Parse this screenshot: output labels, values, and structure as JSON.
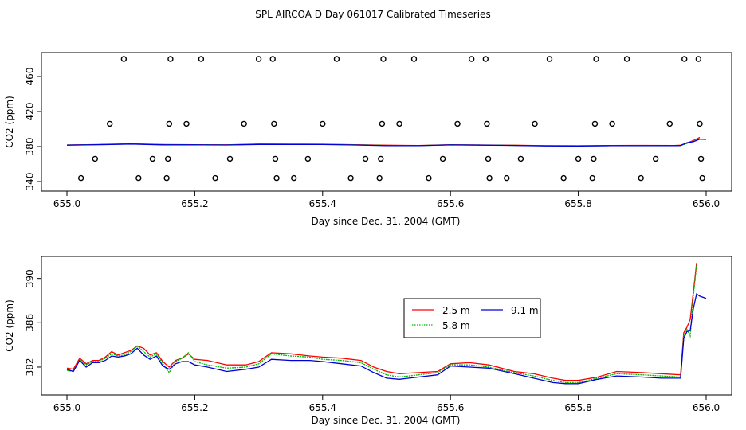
{
  "page": {
    "title": "SPL AIRCOA D  Day 061017  Calibrated Timeseries"
  },
  "chart_data": [
    {
      "type": "scatter",
      "id": "top",
      "xlabel": "Day since Dec. 31, 2004 (GMT)",
      "ylabel": "CO2 (ppm)",
      "xlim": [
        655.0,
        656.0
      ],
      "ylim": [
        340,
        480
      ],
      "xticks": [
        655.0,
        655.2,
        655.4,
        655.6,
        655.8,
        656.0
      ],
      "xtick_labels": [
        "655.0",
        "655.2",
        "655.4",
        "655.6",
        "655.8",
        "656.0"
      ],
      "yticks": [
        340,
        380,
        420,
        460
      ],
      "ytick_labels": [
        "340",
        "380",
        "420",
        "460"
      ],
      "points": [
        {
          "x": 655.022,
          "y": 344
        },
        {
          "x": 655.044,
          "y": 366
        },
        {
          "x": 655.067,
          "y": 406
        },
        {
          "x": 655.089,
          "y": 480
        },
        {
          "x": 655.112,
          "y": 344
        },
        {
          "x": 655.134,
          "y": 366
        },
        {
          "x": 655.156,
          "y": 344
        },
        {
          "x": 655.158,
          "y": 366
        },
        {
          "x": 655.16,
          "y": 406
        },
        {
          "x": 655.162,
          "y": 480
        },
        {
          "x": 655.187,
          "y": 406
        },
        {
          "x": 655.21,
          "y": 480
        },
        {
          "x": 655.232,
          "y": 344
        },
        {
          "x": 655.255,
          "y": 366
        },
        {
          "x": 655.277,
          "y": 406
        },
        {
          "x": 655.3,
          "y": 480
        },
        {
          "x": 655.322,
          "y": 480
        },
        {
          "x": 655.324,
          "y": 406
        },
        {
          "x": 655.326,
          "y": 366
        },
        {
          "x": 655.328,
          "y": 344
        },
        {
          "x": 655.355,
          "y": 344
        },
        {
          "x": 655.377,
          "y": 366
        },
        {
          "x": 655.4,
          "y": 406
        },
        {
          "x": 655.422,
          "y": 480
        },
        {
          "x": 655.444,
          "y": 344
        },
        {
          "x": 655.467,
          "y": 366
        },
        {
          "x": 655.489,
          "y": 344
        },
        {
          "x": 655.491,
          "y": 366
        },
        {
          "x": 655.493,
          "y": 406
        },
        {
          "x": 655.495,
          "y": 480
        },
        {
          "x": 655.52,
          "y": 406
        },
        {
          "x": 655.543,
          "y": 480
        },
        {
          "x": 655.566,
          "y": 344
        },
        {
          "x": 655.588,
          "y": 366
        },
        {
          "x": 655.611,
          "y": 406
        },
        {
          "x": 655.633,
          "y": 480
        },
        {
          "x": 655.655,
          "y": 480
        },
        {
          "x": 655.657,
          "y": 406
        },
        {
          "x": 655.659,
          "y": 366
        },
        {
          "x": 655.661,
          "y": 344
        },
        {
          "x": 655.688,
          "y": 344
        },
        {
          "x": 655.71,
          "y": 366
        },
        {
          "x": 655.732,
          "y": 406
        },
        {
          "x": 655.755,
          "y": 480
        },
        {
          "x": 655.777,
          "y": 344
        },
        {
          "x": 655.8,
          "y": 366
        },
        {
          "x": 655.822,
          "y": 344
        },
        {
          "x": 655.824,
          "y": 366
        },
        {
          "x": 655.826,
          "y": 406
        },
        {
          "x": 655.828,
          "y": 480
        },
        {
          "x": 655.853,
          "y": 406
        },
        {
          "x": 655.876,
          "y": 480
        },
        {
          "x": 655.898,
          "y": 344
        },
        {
          "x": 655.921,
          "y": 366
        },
        {
          "x": 655.943,
          "y": 406
        },
        {
          "x": 655.966,
          "y": 480
        },
        {
          "x": 655.988,
          "y": 480
        },
        {
          "x": 655.99,
          "y": 406
        },
        {
          "x": 655.992,
          "y": 366
        },
        {
          "x": 655.994,
          "y": 344
        }
      ],
      "series": [
        {
          "name": "2.5 m",
          "color": "#ff0000",
          "x": [
            655.0,
            655.05,
            655.1,
            655.15,
            655.2,
            655.25,
            655.3,
            655.35,
            655.4,
            655.45,
            655.5,
            655.55,
            655.6,
            655.65,
            655.7,
            655.75,
            655.8,
            655.85,
            655.9,
            655.95,
            655.96,
            655.97,
            655.98,
            655.99
          ],
          "y": [
            381.8,
            382.4,
            383.2,
            382.4,
            382.2,
            382.0,
            382.9,
            382.8,
            382.7,
            382.2,
            381.5,
            381.3,
            382.1,
            381.8,
            381.5,
            381.0,
            380.9,
            381.3,
            381.4,
            381.2,
            381.5,
            384.0,
            387.0,
            390.5
          ]
        },
        {
          "name": "5.8 m",
          "color": "#00bb00",
          "x": [
            655.0,
            655.05,
            655.1,
            655.15,
            655.2,
            655.25,
            655.3,
            655.35,
            655.4,
            655.45,
            655.5,
            655.55,
            655.6,
            655.65,
            655.7,
            655.75,
            655.8,
            655.85,
            655.9,
            655.95,
            655.96,
            655.97,
            655.98,
            655.99
          ],
          "y": [
            381.7,
            382.3,
            383.0,
            382.2,
            382.1,
            381.9,
            382.7,
            382.6,
            382.6,
            382.0,
            381.3,
            381.1,
            382.0,
            381.7,
            381.4,
            380.9,
            380.8,
            381.1,
            381.2,
            381.1,
            381.3,
            383.5,
            386.5,
            389.5
          ]
        },
        {
          "name": "9.1 m",
          "color": "#0000dd",
          "x": [
            655.0,
            655.05,
            655.1,
            655.15,
            655.2,
            655.25,
            655.3,
            655.35,
            655.4,
            655.45,
            655.5,
            655.55,
            655.6,
            655.65,
            655.7,
            655.75,
            655.8,
            655.85,
            655.9,
            655.95,
            655.96,
            655.97,
            655.98,
            655.99,
            656.0
          ],
          "y": [
            381.6,
            382.2,
            382.9,
            382.0,
            382.0,
            381.8,
            382.5,
            382.4,
            382.4,
            381.8,
            381.0,
            381.0,
            381.9,
            381.6,
            381.3,
            380.7,
            380.6,
            381.0,
            381.0,
            381.0,
            381.2,
            384.5,
            385.5,
            388.5,
            388.2
          ]
        }
      ]
    },
    {
      "type": "line",
      "id": "bottom",
      "xlabel": "Day since Dec. 31, 2004 (GMT)",
      "ylabel": "CO2 (ppm)",
      "xlim": [
        655.0,
        656.0
      ],
      "ylim": [
        380.2,
        391.7
      ],
      "xticks": [
        655.0,
        655.2,
        655.4,
        655.6,
        655.8,
        656.0
      ],
      "xtick_labels": [
        "655.0",
        "655.2",
        "655.4",
        "655.6",
        "655.8",
        "656.0"
      ],
      "yticks": [
        382,
        386,
        390
      ],
      "ytick_labels": [
        "382",
        "386",
        "390"
      ],
      "legend": {
        "position": "center-right",
        "entries": [
          {
            "label": "2.5 m",
            "color": "#ff0000",
            "dash": "solid"
          },
          {
            "label": "5.8 m",
            "color": "#00bb00",
            "dash": "dotted"
          },
          {
            "label": "9.1 m",
            "color": "#0000dd",
            "dash": "solid"
          }
        ]
      },
      "series": [
        {
          "name": "2.5 m",
          "color": "#ff0000",
          "x": [
            655.0,
            655.01,
            655.02,
            655.03,
            655.04,
            655.05,
            655.06,
            655.07,
            655.08,
            655.09,
            655.1,
            655.11,
            655.12,
            655.13,
            655.14,
            655.15,
            655.16,
            655.17,
            655.18,
            655.19,
            655.2,
            655.22,
            655.25,
            655.28,
            655.3,
            655.32,
            655.35,
            655.38,
            655.4,
            655.43,
            655.46,
            655.48,
            655.5,
            655.52,
            655.55,
            655.58,
            655.6,
            655.63,
            655.66,
            655.7,
            655.73,
            655.76,
            655.78,
            655.8,
            655.83,
            655.86,
            655.9,
            655.93,
            655.96,
            655.965,
            655.97,
            655.975,
            655.98,
            655.985
          ],
          "y": [
            381.9,
            381.8,
            382.8,
            382.3,
            382.6,
            382.6,
            382.9,
            383.4,
            383.1,
            383.3,
            383.5,
            383.9,
            383.7,
            383.1,
            383.3,
            382.5,
            382.0,
            382.6,
            382.8,
            383.2,
            382.7,
            382.6,
            382.2,
            382.2,
            382.5,
            383.3,
            383.2,
            383.0,
            382.9,
            382.8,
            382.6,
            382.0,
            381.6,
            381.4,
            381.5,
            381.6,
            382.3,
            382.4,
            382.2,
            381.6,
            381.4,
            381.0,
            380.8,
            380.8,
            381.1,
            381.6,
            381.5,
            381.4,
            381.3,
            385.1,
            385.6,
            386.3,
            388.8,
            391.4
          ]
        },
        {
          "name": "5.8 m",
          "color": "#00bb00",
          "x": [
            655.0,
            655.01,
            655.02,
            655.03,
            655.04,
            655.05,
            655.06,
            655.07,
            655.08,
            655.09,
            655.1,
            655.11,
            655.12,
            655.13,
            655.14,
            655.15,
            655.16,
            655.17,
            655.18,
            655.19,
            655.2,
            655.22,
            655.25,
            655.28,
            655.3,
            655.32,
            655.35,
            655.38,
            655.4,
            655.43,
            655.46,
            655.48,
            655.5,
            655.52,
            655.55,
            655.58,
            655.6,
            655.63,
            655.66,
            655.7,
            655.73,
            655.76,
            655.78,
            655.8,
            655.83,
            655.86,
            655.9,
            655.93,
            655.96,
            655.965,
            655.97,
            655.975,
            655.98,
            655.985
          ],
          "y": [
            381.7,
            381.6,
            382.7,
            382.2,
            382.5,
            382.5,
            382.8,
            383.2,
            383.0,
            383.1,
            383.4,
            383.9,
            383.4,
            382.9,
            383.2,
            382.3,
            381.5,
            382.5,
            382.8,
            383.3,
            382.5,
            382.2,
            381.9,
            382.0,
            382.3,
            383.2,
            383.0,
            382.9,
            382.7,
            382.6,
            382.4,
            381.8,
            381.3,
            381.1,
            381.3,
            381.5,
            382.2,
            382.2,
            382.0,
            381.5,
            381.2,
            380.8,
            380.6,
            380.6,
            381.0,
            381.4,
            381.3,
            381.2,
            381.1,
            384.8,
            385.4,
            384.8,
            388.5,
            391.2
          ]
        },
        {
          "name": "9.1 m",
          "color": "#0000dd",
          "x": [
            655.0,
            655.01,
            655.02,
            655.03,
            655.04,
            655.05,
            655.06,
            655.07,
            655.08,
            655.09,
            655.1,
            655.11,
            655.12,
            655.13,
            655.14,
            655.15,
            655.16,
            655.17,
            655.18,
            655.19,
            655.2,
            655.22,
            655.25,
            655.28,
            655.3,
            655.32,
            655.35,
            655.38,
            655.4,
            655.43,
            655.46,
            655.48,
            655.5,
            655.52,
            655.55,
            655.58,
            655.6,
            655.63,
            655.66,
            655.7,
            655.73,
            655.76,
            655.78,
            655.8,
            655.83,
            655.86,
            655.9,
            655.93,
            655.96,
            655.965,
            655.97,
            655.975,
            655.98,
            655.985,
            655.99,
            656.0
          ],
          "y": [
            381.8,
            381.6,
            382.6,
            382.0,
            382.4,
            382.4,
            382.6,
            383.0,
            382.9,
            383.0,
            383.2,
            383.7,
            383.1,
            382.7,
            383.0,
            382.1,
            381.8,
            382.3,
            382.5,
            382.5,
            382.2,
            382.0,
            381.6,
            381.8,
            382.0,
            382.7,
            382.6,
            382.6,
            382.5,
            382.3,
            382.1,
            381.5,
            381.0,
            380.9,
            381.1,
            381.3,
            382.1,
            382.0,
            381.9,
            381.4,
            381.0,
            380.6,
            380.5,
            380.5,
            380.9,
            381.2,
            381.1,
            381.0,
            381.0,
            384.6,
            385.2,
            385.3,
            387.3,
            388.6,
            388.4,
            388.2
          ]
        }
      ]
    }
  ]
}
